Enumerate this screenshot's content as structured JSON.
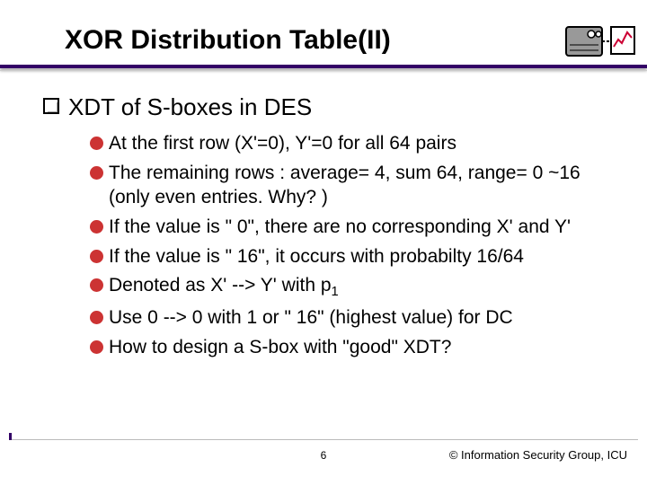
{
  "title": "XOR Distribution Table(II)",
  "heading": {
    "text": "XDT of S-boxes in DES",
    "bullet_border": "#000000"
  },
  "items": [
    {
      "text": "At the first row (X'=0), Y'=0 for all 64 pairs",
      "color": "#cc3333"
    },
    {
      "text": "The remaining rows : average= 4, sum 64, range= 0 ~16 (only even entries. Why? )",
      "color": "#cc3333"
    },
    {
      "text": "If the value is \" 0\", there are no corresponding X' and Y'",
      "color": "#cc3333"
    },
    {
      "text": "If the value is \" 16\", it occurs with probabilty  16/64",
      "color": "#cc3333"
    },
    {
      "text_html": "Denoted as X' --> Y' with p<span class=\"sub\">1</span>",
      "color": "#cc3333"
    },
    {
      "text": "Use 0 --> 0 with 1 or \" 16\" (highest value) for DC",
      "color": "#cc3333"
    },
    {
      "text": "How to design a S-box with \"good\" XDT?",
      "color": "#cc3333"
    }
  ],
  "footer": {
    "page": "6",
    "copyright": "© Information Security Group, ICU"
  },
  "colors": {
    "accent": "#330066",
    "bullet2": "#cc3333",
    "text": "#000000",
    "background": "#ffffff"
  },
  "decor": {
    "safe_fill": "#999999",
    "safe_stroke": "#000000",
    "chart_fill": "#ffffff",
    "chart_stroke": "#000000",
    "chart_line": "#cc0033"
  }
}
